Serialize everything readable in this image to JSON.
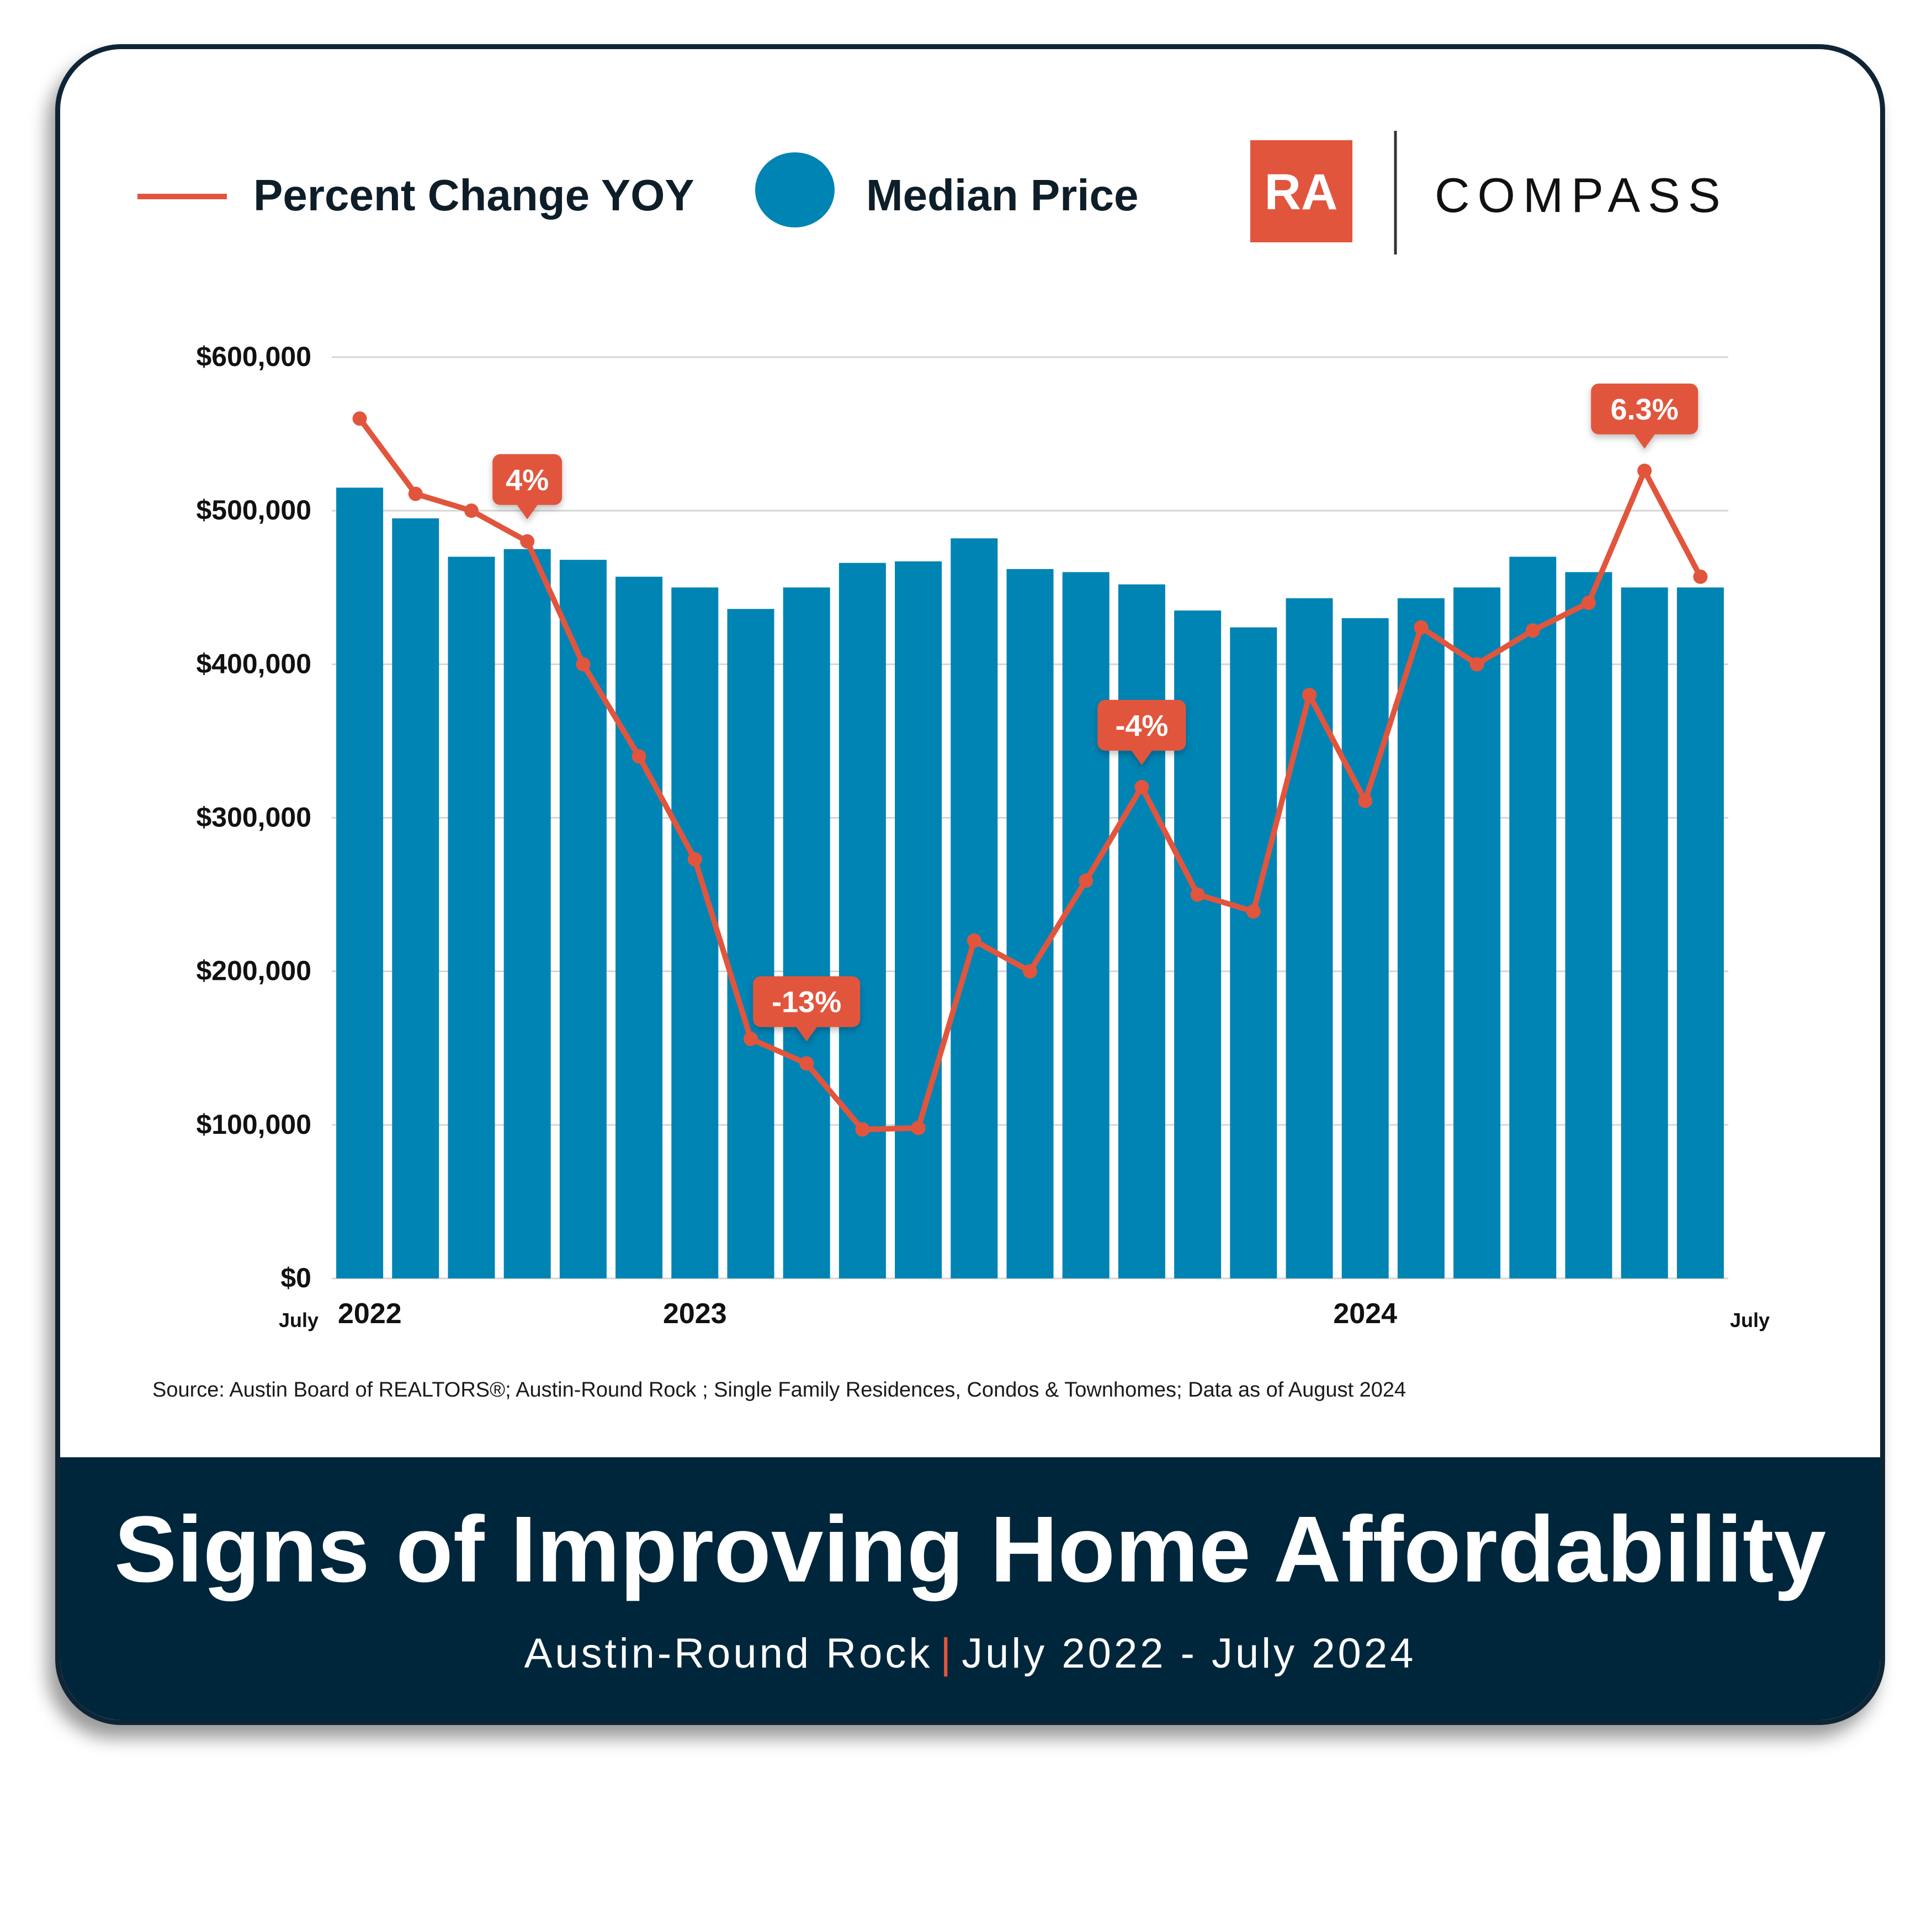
{
  "legend": {
    "line_label": "Percent Change YOY",
    "bar_label": "Median Price",
    "line_color": "#e2553d",
    "bar_color": "#0084b4"
  },
  "branding": {
    "ra_logo_text": "RA",
    "compass_logo_text": "COMPASS"
  },
  "footer": {
    "title": "Signs of Improving Home Affordability",
    "subtitle_location": "Austin-Round Rock",
    "subtitle_separator": "|",
    "subtitle_dates": "July 2022 - July 2024"
  },
  "source_note": "Source: Austin Board of REALTORS®; Austin-Round Rock ; Single Family Residences, Condos & Townhomes; Data as of August  2024",
  "chart_data": {
    "type": "bar",
    "ylim": [
      0,
      600000
    ],
    "y_ticks": [
      0,
      100000,
      200000,
      300000,
      400000,
      500000,
      600000
    ],
    "y_tick_labels": [
      "$0",
      "$100,000",
      "$200,000",
      "$300,000",
      "$400,000",
      "$500,000",
      "$600,000"
    ],
    "grid": true,
    "legend_position": "top-left",
    "categories": [
      "Jul 2022",
      "Aug 2022",
      "Sep 2022",
      "Oct 2022",
      "Nov 2022",
      "Dec 2022",
      "Jan 2023",
      "Feb 2023",
      "Mar 2023",
      "Apr 2023",
      "May 2023",
      "Jun 2023",
      "Jul 2023",
      "Aug 2023",
      "Sep 2023",
      "Oct 2023",
      "Nov 2023",
      "Dec 2023",
      "Jan 2024",
      "Feb 2024",
      "Mar 2024",
      "Apr 2024",
      "May 2024",
      "Jun 2024",
      "Jul 2024"
    ],
    "x_tick_labels": [
      {
        "index": 0,
        "label": "July",
        "size": "small"
      },
      {
        "index": 0,
        "label": "2022",
        "size": "large"
      },
      {
        "index": 6,
        "label": "2023",
        "size": "large"
      },
      {
        "index": 18,
        "label": "2024",
        "size": "large"
      },
      {
        "index": 24,
        "label": "July",
        "size": "small"
      }
    ],
    "series": [
      {
        "name": "Median Price",
        "type": "bar",
        "values": [
          515000,
          495000,
          470000,
          475000,
          468000,
          457000,
          450000,
          436000,
          450000,
          466000,
          467000,
          482000,
          462000,
          460000,
          452000,
          435000,
          424000,
          443000,
          430000,
          443000,
          450000,
          470000,
          460000,
          450000,
          450000
        ]
      },
      {
        "name": "Percent Change YOY",
        "type": "line",
        "values": [
          560000,
          511000,
          500000,
          480000,
          400000,
          340000,
          273000,
          156000,
          140000,
          97000,
          98000,
          220000,
          200000,
          259000,
          320000,
          250000,
          239000,
          380000,
          311000,
          424000,
          400000,
          422000,
          440000,
          526000,
          457000
        ]
      }
    ],
    "annotations": [
      {
        "series": "Percent Change YOY",
        "index": 3,
        "label": "4%"
      },
      {
        "series": "Percent Change YOY",
        "index": 8,
        "label": "-13%"
      },
      {
        "series": "Percent Change YOY",
        "index": 14,
        "label": "-4%"
      },
      {
        "series": "Percent Change YOY",
        "index": 23,
        "label": "6.3%"
      }
    ]
  }
}
